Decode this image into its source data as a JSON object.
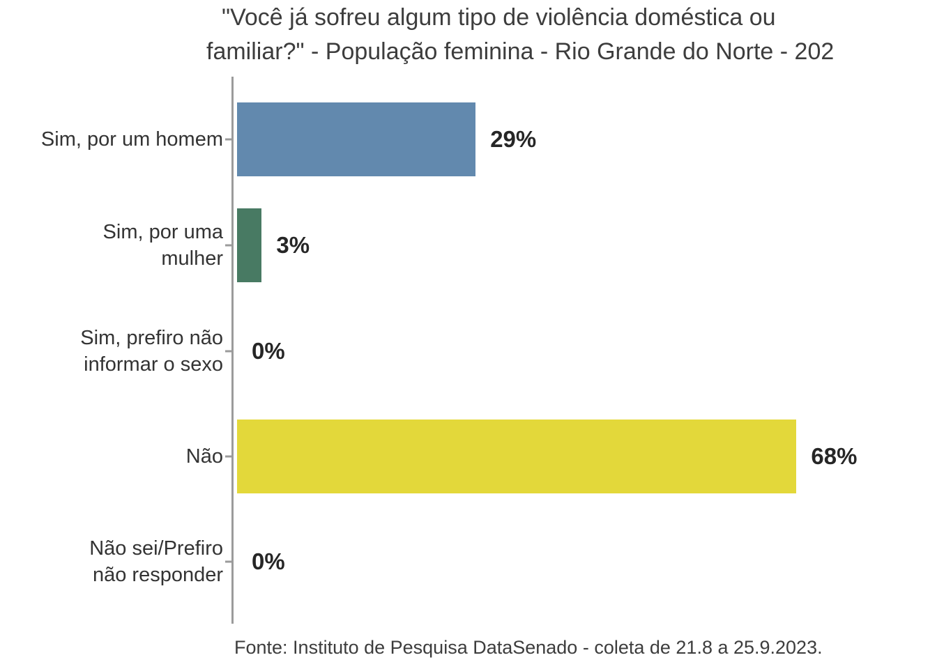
{
  "title": {
    "line1": "\"Você já sofreu algum tipo de violência doméstica ou",
    "line2": "familiar?\" - População feminina - Rio Grande do Norte - 202"
  },
  "footer": {
    "text": "Fonte: Instituto de Pesquisa DataSenado - coleta de 21.8 a 25.9.2023."
  },
  "colors": {
    "bar_blue": "#6289ae",
    "bar_green": "#487a63",
    "bar_yellow": "#e3d83a",
    "axis_gray": "#9b9b9b",
    "title_text": "#3d3d3d",
    "category_text": "#333333",
    "value_text": "#262626"
  },
  "chart_data": {
    "type": "bar",
    "orientation": "horizontal",
    "title": "\"Você já sofreu algum tipo de violência doméstica ou familiar?\" - População feminina - Rio Grande do Norte - 202",
    "source": "Fonte: Instituto de Pesquisa DataSenado - coleta de 21.8 a 25.9.2023.",
    "unit": "%",
    "xlim": [
      0,
      100
    ],
    "grid": false,
    "legend": false,
    "categories": [
      "Sim, por um homem",
      "Sim, por uma mulher",
      "Sim, prefiro não informar o sexo",
      "Não",
      "Não sei/Prefiro não responder"
    ],
    "values": [
      29,
      3,
      0,
      68,
      0
    ],
    "rows": [
      {
        "label": "Sim, por um homem",
        "value": 29,
        "value_label": "29%",
        "color": "#6289ae"
      },
      {
        "label": "Sim, por uma\nmulher",
        "value": 3,
        "value_label": "3%",
        "color": "#487a63"
      },
      {
        "label": "Sim, prefiro não\ninformar o sexo",
        "value": 0,
        "value_label": "0%",
        "color": null
      },
      {
        "label": "Não",
        "value": 68,
        "value_label": "68%",
        "color": "#e3d83a"
      },
      {
        "label": "Não sei/Prefiro\nnão responder",
        "value": 0,
        "value_label": "0%",
        "color": null
      }
    ]
  }
}
